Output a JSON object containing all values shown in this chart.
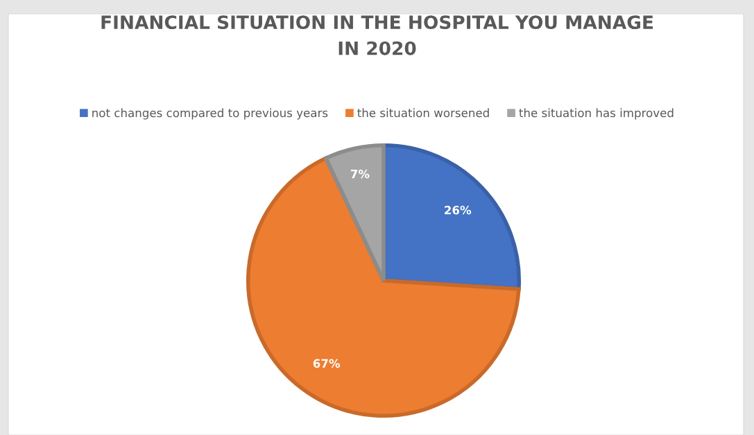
{
  "chart_data": {
    "type": "pie",
    "title": "FINANCIAL SITUATION IN THE HOSPITAL YOU MANAGE\nIN 2020",
    "categories": [
      "not changes compared to previous years",
      "the situation worsened",
      "the situation has improved"
    ],
    "values": [
      26,
      67,
      7
    ],
    "colors": [
      "#4472c4",
      "#ed7d31",
      "#a5a5a5"
    ],
    "value_labels": [
      "26%",
      "67%",
      "7%"
    ],
    "legend": "top"
  }
}
